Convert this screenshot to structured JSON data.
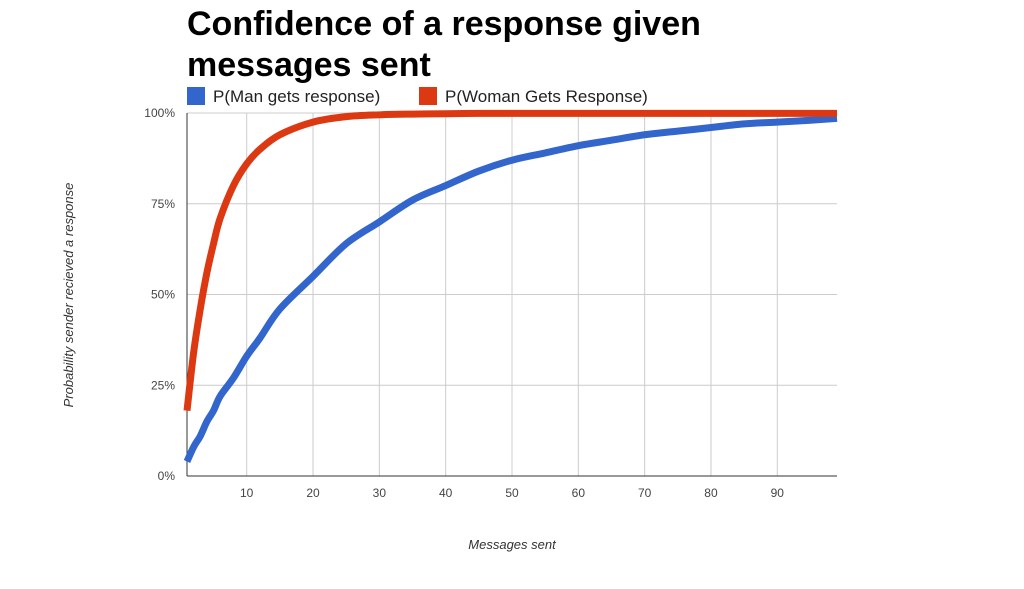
{
  "chart_data": {
    "type": "line",
    "title_lines": [
      "Confidence of a response given",
      "messages sent"
    ],
    "xlabel": "Messages sent",
    "ylabel": "Probability sender recieved a response",
    "xlim": [
      1,
      99
    ],
    "ylim": [
      0,
      100
    ],
    "x_ticks": [
      10,
      20,
      30,
      40,
      50,
      60,
      70,
      80,
      90
    ],
    "x_tick_labels": [
      "10",
      "20",
      "30",
      "40",
      "50",
      "60",
      "70",
      "80",
      "90"
    ],
    "y_ticks": [
      0,
      25,
      50,
      75,
      100
    ],
    "y_tick_labels": [
      "0%",
      "25%",
      "50%",
      "75%",
      "100%"
    ],
    "grid": true,
    "legend_position": "top-left",
    "x": [
      1,
      2,
      3,
      4,
      5,
      6,
      8,
      10,
      12,
      15,
      20,
      25,
      30,
      35,
      40,
      45,
      50,
      55,
      60,
      65,
      70,
      75,
      80,
      85,
      90,
      95,
      99
    ],
    "series": [
      {
        "name": "P(Man gets response)",
        "color": "#3366cc",
        "values": [
          4,
          8,
          11,
          15,
          18,
          22,
          27,
          33,
          38,
          46,
          55,
          64,
          70,
          76,
          80,
          84,
          87,
          89,
          91,
          92.5,
          94,
          95,
          96,
          97,
          97.5,
          98,
          98.5
        ]
      },
      {
        "name": "P(Woman Gets Response)",
        "color": "#dc3912",
        "values": [
          18,
          34,
          46,
          56,
          64,
          71,
          80,
          86,
          90,
          94,
          97.5,
          99,
          99.5,
          99.7,
          99.8,
          99.9,
          99.9,
          99.9,
          99.9,
          99.9,
          99.9,
          99.9,
          99.9,
          99.9,
          99.9,
          99.9,
          99.9
        ]
      }
    ]
  }
}
